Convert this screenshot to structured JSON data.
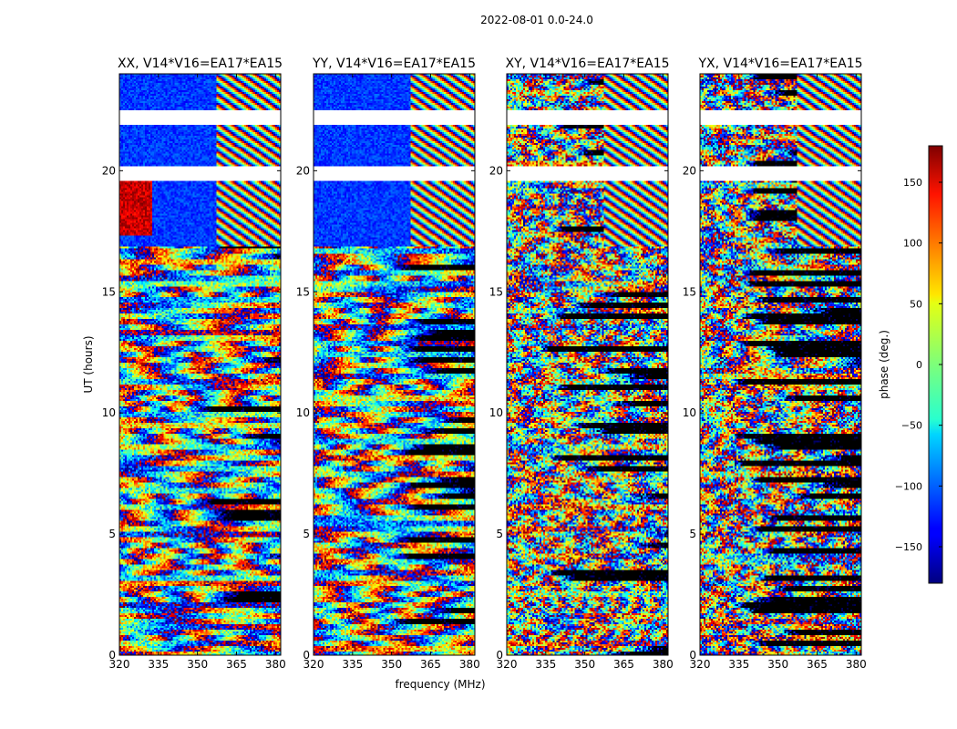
{
  "figure": {
    "suptitle": "2022-08-01 0.0-24.0"
  },
  "chart_data": {
    "type": "heatmap",
    "suptitle": "2022-08-01 0.0-24.0",
    "xlabel": "frequency (MHz)",
    "ylabel": "UT (hours)",
    "xlim": [
      320,
      382
    ],
    "ylim": [
      0,
      24
    ],
    "xticks": [
      320,
      335,
      350,
      365,
      380
    ],
    "yticks": [
      0,
      5,
      10,
      15,
      20
    ],
    "panels": [
      {
        "title": "XX, V14*V16=EA17*EA15",
        "polarization": "XX"
      },
      {
        "title": "YY, V14*V16=EA17*EA15",
        "polarization": "YY"
      },
      {
        "title": "XY, V14*V16=EA17*EA15",
        "polarization": "XY"
      },
      {
        "title": "YX, V14*V16=EA17*EA15",
        "polarization": "YX"
      }
    ],
    "data_gaps_ut_hours": [
      [
        21.9,
        22.5
      ],
      [
        19.6,
        20.2
      ]
    ],
    "colorbar": {
      "label": "phase (deg.)",
      "range": [
        -180,
        180
      ],
      "ticks": [
        -150,
        -100,
        -50,
        0,
        50,
        100,
        150
      ],
      "colormap": "jet"
    },
    "grid": false
  }
}
